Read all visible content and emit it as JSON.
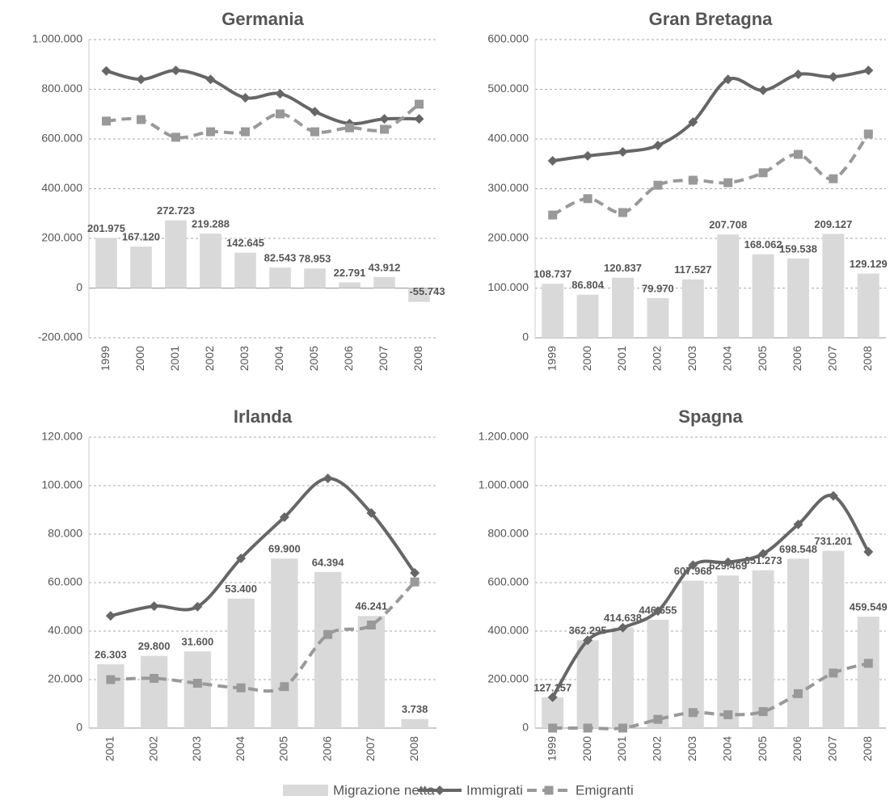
{
  "legend": [
    "Migrazione netta",
    "Immigrati",
    "Emigranti"
  ],
  "chart_data": [
    {
      "type": "combo",
      "title": "Germania",
      "categories": [
        "1999",
        "2000",
        "2001",
        "2002",
        "2003",
        "2004",
        "2005",
        "2006",
        "2007",
        "2008"
      ],
      "ylim": [
        -200000,
        1000000
      ],
      "yticks": [
        {
          "value": -200000,
          "label": "-200.000"
        },
        0,
        {
          "value": 200000,
          "label": "200.000"
        },
        {
          "value": 400000,
          "label": "400.000"
        },
        {
          "value": 600000,
          "label": "600.000"
        },
        {
          "value": 800000,
          "label": "800.000"
        },
        {
          "value": 1000000,
          "label": "1.000.000"
        }
      ],
      "grid": true,
      "series": [
        {
          "type": "bar",
          "color": "#d9d9d9",
          "values": [
            201975,
            167120,
            272723,
            219288,
            142645,
            82543,
            78953,
            22791,
            43912,
            -55743
          ],
          "value_labels": [
            "201.975",
            "167.120",
            "272.723",
            "219.288",
            "142.645",
            "82.543",
            "78.953",
            "22.791",
            "43.912",
            "-55.743"
          ]
        },
        {
          "type": "line",
          "color": "#666666",
          "marker": "diamond",
          "dashed": false,
          "values": [
            874000,
            840000,
            876000,
            840000,
            766000,
            782000,
            710000,
            662000,
            681000,
            681000
          ]
        },
        {
          "type": "line",
          "color": "#999999",
          "marker": "square",
          "dashed": true,
          "values": [
            672000,
            678000,
            607000,
            629000,
            629000,
            701000,
            629000,
            645000,
            639000,
            740000
          ]
        }
      ]
    },
    {
      "type": "combo",
      "title": "Gran Bretagna",
      "categories": [
        "1999",
        "2000",
        "2001",
        "2002",
        "2003",
        "2004",
        "2005",
        "2006",
        "2007",
        "2008"
      ],
      "ylim": [
        0,
        600000
      ],
      "yticks": [
        0,
        {
          "value": 100000,
          "label": "100.000"
        },
        {
          "value": 200000,
          "label": "200.000"
        },
        {
          "value": 300000,
          "label": "300.000"
        },
        {
          "value": 400000,
          "label": "400.000"
        },
        {
          "value": 500000,
          "label": "500.000"
        },
        {
          "value": 600000,
          "label": "600.000"
        }
      ],
      "grid": true,
      "series": [
        {
          "type": "bar",
          "color": "#d9d9d9",
          "values": [
            108737,
            86804,
            120837,
            79970,
            117527,
            207708,
            168062,
            159538,
            209127,
            129129
          ],
          "value_labels": [
            "108.737",
            "86.804",
            "120.837",
            "79.970",
            "117.527",
            "207.708",
            "168.062",
            "159.538",
            "209.127",
            "129.129"
          ]
        },
        {
          "type": "line",
          "color": "#666666",
          "marker": "diamond",
          "dashed": false,
          "values": [
            356000,
            366000,
            374000,
            387000,
            434000,
            520000,
            498000,
            530000,
            525000,
            538000
          ]
        },
        {
          "type": "line",
          "color": "#999999",
          "marker": "square",
          "dashed": true,
          "values": [
            247000,
            280000,
            252000,
            307000,
            317000,
            312000,
            332000,
            369000,
            320000,
            410000
          ]
        }
      ]
    },
    {
      "type": "combo",
      "title": "Irlanda",
      "categories": [
        "2001",
        "2002",
        "2003",
        "2004",
        "2005",
        "2006",
        "2007",
        "2008"
      ],
      "ylim": [
        0,
        120000
      ],
      "yticks": [
        0,
        {
          "value": 20000,
          "label": "20.000"
        },
        {
          "value": 40000,
          "label": "40.000"
        },
        {
          "value": 60000,
          "label": "60.000"
        },
        {
          "value": 80000,
          "label": "80.000"
        },
        {
          "value": 100000,
          "label": "100.000"
        },
        {
          "value": 120000,
          "label": "120.000"
        }
      ],
      "grid": true,
      "series": [
        {
          "type": "bar",
          "color": "#d9d9d9",
          "values": [
            26303,
            29800,
            31600,
            53400,
            69900,
            64394,
            46241,
            3738
          ],
          "value_labels": [
            "26.303",
            "29.800",
            "31.600",
            "53.400",
            "69.900",
            "64.394",
            "46.241",
            "3.738"
          ]
        },
        {
          "type": "line",
          "color": "#666666",
          "marker": "diamond",
          "dashed": false,
          "values": [
            46300,
            50300,
            50100,
            70000,
            87000,
            103000,
            88700,
            64000
          ]
        },
        {
          "type": "line",
          "color": "#999999",
          "marker": "square",
          "dashed": true,
          "values": [
            20000,
            20500,
            18500,
            16600,
            17100,
            38600,
            42500,
            60300
          ]
        }
      ]
    },
    {
      "type": "combo",
      "title": "Spagna",
      "categories": [
        "1999",
        "2000",
        "2001",
        "2002",
        "2003",
        "2004",
        "2005",
        "2006",
        "2007",
        "2008"
      ],
      "ylim": [
        0,
        1200000
      ],
      "yticks": [
        0,
        {
          "value": 200000,
          "label": "200.000"
        },
        {
          "value": 400000,
          "label": "400.000"
        },
        {
          "value": 600000,
          "label": "600.000"
        },
        {
          "value": 800000,
          "label": "800.000"
        },
        {
          "value": 1000000,
          "label": "1.000.000"
        },
        {
          "value": 1200000,
          "label": "1.200.000"
        }
      ],
      "grid": true,
      "series": [
        {
          "type": "bar",
          "color": "#d9d9d9",
          "values": [
            127157,
            362295,
            414638,
            446655,
            607968,
            629469,
            651273,
            698548,
            731201,
            459549
          ],
          "value_labels": [
            "127.157",
            "362.295",
            "414.638",
            "446.655",
            "607.968",
            "629.469",
            "651.273",
            "698.548",
            "731.201",
            "459.549"
          ]
        },
        {
          "type": "line",
          "color": "#666666",
          "marker": "diamond",
          "dashed": false,
          "values": [
            127000,
            362000,
            414000,
            483000,
            672000,
            684000,
            719000,
            840000,
            958000,
            727000
          ]
        },
        {
          "type": "line",
          "color": "#999999",
          "marker": "square",
          "dashed": true,
          "values": [
            0,
            0,
            0,
            36000,
            64000,
            55000,
            68000,
            142000,
            227000,
            267000
          ]
        }
      ]
    }
  ]
}
